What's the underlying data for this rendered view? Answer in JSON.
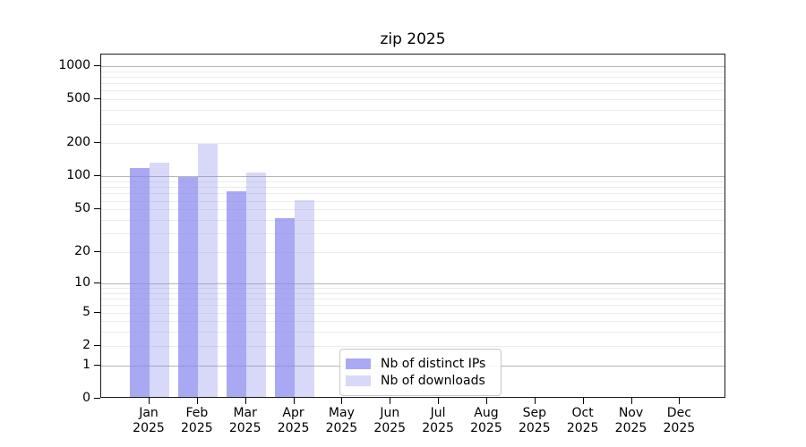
{
  "chart_data": {
    "type": "bar",
    "title": "zip 2025",
    "categories": [
      "Jan",
      "Feb",
      "Mar",
      "Apr",
      "May",
      "Jun",
      "Jul",
      "Aug",
      "Sep",
      "Oct",
      "Nov",
      "Dec"
    ],
    "year": "2025",
    "series": [
      {
        "name": "Nb of distinct IPs",
        "color": "#a9a9f4",
        "rgba": "rgba(136,136,238,0.72)",
        "values": [
          115,
          95,
          70,
          40,
          null,
          null,
          null,
          null,
          null,
          null,
          null,
          null
        ]
      },
      {
        "name": "Nb of downloads",
        "color": "#d8d8f8",
        "rgba": "rgba(136,136,238,0.33)",
        "values": [
          130,
          190,
          105,
          58,
          null,
          null,
          null,
          null,
          null,
          null,
          null,
          null
        ]
      }
    ],
    "yscale": "log1p",
    "yticks": [
      0,
      1,
      2,
      5,
      10,
      20,
      50,
      100,
      200,
      500,
      1000
    ],
    "ylim": [
      0,
      1273
    ],
    "xlabel": "",
    "ylabel": "",
    "grid": true,
    "legend_position": "lower center",
    "colors": {
      "axis": "#000000",
      "grid_major": "#b5b5b5",
      "grid_minor": "#ebebeb",
      "legend_border": "#c8c8c8"
    }
  }
}
